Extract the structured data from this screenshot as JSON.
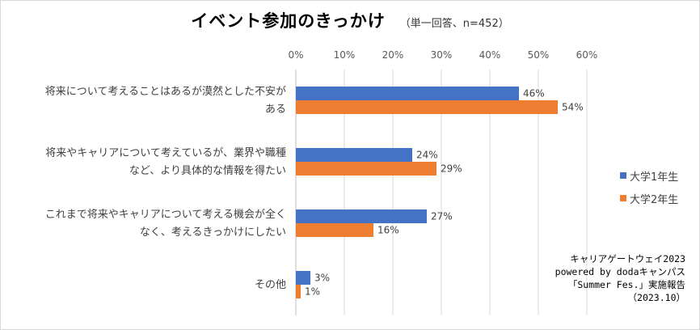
{
  "title": "イベント参加のきっかけ",
  "subtitle": "（単一回答、n=452）",
  "chart_data": {
    "type": "bar",
    "orientation": "horizontal",
    "categories": [
      [
        "将来について考えることはあるが漠然とした不安が",
        "ある"
      ],
      [
        "将来やキャリアについて考えているが、業界や職種",
        "など、より具体的な情報を得たい"
      ],
      [
        "これまで将来やキャリアについて考える機会が全く",
        "なく、考えるきっかけにしたい"
      ],
      [
        "その他"
      ]
    ],
    "series": [
      {
        "name": "大学1年生",
        "color": "#4472c4",
        "values": [
          46,
          24,
          27,
          3
        ]
      },
      {
        "name": "大学2年生",
        "color": "#ed7d31",
        "values": [
          54,
          29,
          16,
          1
        ]
      }
    ],
    "x_ticks": [
      "0%",
      "10%",
      "20%",
      "30%",
      "40%",
      "50%",
      "60%"
    ],
    "xlim": [
      0,
      60
    ],
    "value_suffix": "%",
    "grid": true,
    "legend_position": "right"
  },
  "source_note": [
    "キャリアゲートウェイ2023",
    "powered by dodaキャンパス",
    "「Summer Fes.」実施報告",
    "（2023.10）"
  ]
}
